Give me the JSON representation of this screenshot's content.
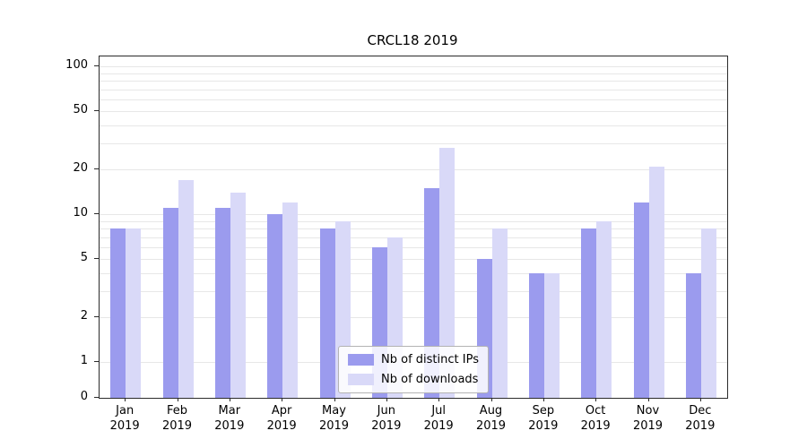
{
  "title": "CRCL18 2019",
  "chart_data": {
    "type": "bar",
    "title": "CRCL18 2019",
    "categories": [
      "Jan",
      "Feb",
      "Mar",
      "Apr",
      "May",
      "Jun",
      "Jul",
      "Aug",
      "Sep",
      "Oct",
      "Nov",
      "Dec"
    ],
    "category_year": "2019",
    "series": [
      {
        "name": "Nb of distinct IPs",
        "color": "#9b9bee",
        "values": [
          8,
          11,
          11,
          10,
          8,
          6,
          15,
          5,
          4,
          8,
          12,
          4
        ]
      },
      {
        "name": "Nb of downloads",
        "color": "#d9d9f8",
        "values": [
          8,
          17,
          14,
          12,
          9,
          7,
          28,
          8,
          4,
          9,
          21,
          8
        ]
      }
    ],
    "xlabel": "",
    "ylabel": "",
    "yscale": "symlog",
    "ylim": [
      0,
      100
    ],
    "yticks_labeled": [
      0,
      1,
      2,
      5,
      10,
      20,
      50,
      100
    ],
    "grid": "horizontal-minor",
    "legend_position": "lower center"
  }
}
